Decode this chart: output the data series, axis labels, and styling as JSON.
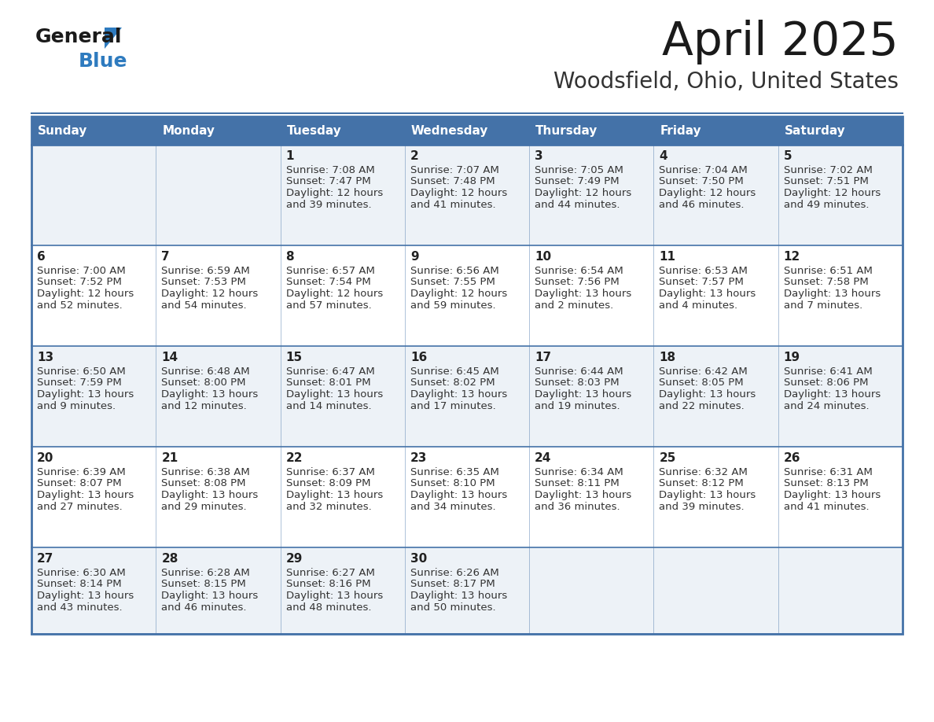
{
  "title": "April 2025",
  "subtitle": "Woodsfield, Ohio, United States",
  "header_bg": "#4472a8",
  "header_text_color": "#ffffff",
  "cell_bg_odd": "#edf2f7",
  "cell_bg_even": "#ffffff",
  "border_color": "#4472a8",
  "day_headers": [
    "Sunday",
    "Monday",
    "Tuesday",
    "Wednesday",
    "Thursday",
    "Friday",
    "Saturday"
  ],
  "title_color": "#1a1a1a",
  "subtitle_color": "#333333",
  "day_num_color": "#222222",
  "cell_text_color": "#333333",
  "calendar": [
    [
      {
        "day": "",
        "sunrise": "",
        "sunset": "",
        "daylight": ""
      },
      {
        "day": "",
        "sunrise": "",
        "sunset": "",
        "daylight": ""
      },
      {
        "day": "1",
        "sunrise": "7:08 AM",
        "sunset": "7:47 PM",
        "daylight": "12 hours and 39 minutes."
      },
      {
        "day": "2",
        "sunrise": "7:07 AM",
        "sunset": "7:48 PM",
        "daylight": "12 hours and 41 minutes."
      },
      {
        "day": "3",
        "sunrise": "7:05 AM",
        "sunset": "7:49 PM",
        "daylight": "12 hours and 44 minutes."
      },
      {
        "day": "4",
        "sunrise": "7:04 AM",
        "sunset": "7:50 PM",
        "daylight": "12 hours and 46 minutes."
      },
      {
        "day": "5",
        "sunrise": "7:02 AM",
        "sunset": "7:51 PM",
        "daylight": "12 hours and 49 minutes."
      }
    ],
    [
      {
        "day": "6",
        "sunrise": "7:00 AM",
        "sunset": "7:52 PM",
        "daylight": "12 hours and 52 minutes."
      },
      {
        "day": "7",
        "sunrise": "6:59 AM",
        "sunset": "7:53 PM",
        "daylight": "12 hours and 54 minutes."
      },
      {
        "day": "8",
        "sunrise": "6:57 AM",
        "sunset": "7:54 PM",
        "daylight": "12 hours and 57 minutes."
      },
      {
        "day": "9",
        "sunrise": "6:56 AM",
        "sunset": "7:55 PM",
        "daylight": "12 hours and 59 minutes."
      },
      {
        "day": "10",
        "sunrise": "6:54 AM",
        "sunset": "7:56 PM",
        "daylight": "13 hours and 2 minutes."
      },
      {
        "day": "11",
        "sunrise": "6:53 AM",
        "sunset": "7:57 PM",
        "daylight": "13 hours and 4 minutes."
      },
      {
        "day": "12",
        "sunrise": "6:51 AM",
        "sunset": "7:58 PM",
        "daylight": "13 hours and 7 minutes."
      }
    ],
    [
      {
        "day": "13",
        "sunrise": "6:50 AM",
        "sunset": "7:59 PM",
        "daylight": "13 hours and 9 minutes."
      },
      {
        "day": "14",
        "sunrise": "6:48 AM",
        "sunset": "8:00 PM",
        "daylight": "13 hours and 12 minutes."
      },
      {
        "day": "15",
        "sunrise": "6:47 AM",
        "sunset": "8:01 PM",
        "daylight": "13 hours and 14 minutes."
      },
      {
        "day": "16",
        "sunrise": "6:45 AM",
        "sunset": "8:02 PM",
        "daylight": "13 hours and 17 minutes."
      },
      {
        "day": "17",
        "sunrise": "6:44 AM",
        "sunset": "8:03 PM",
        "daylight": "13 hours and 19 minutes."
      },
      {
        "day": "18",
        "sunrise": "6:42 AM",
        "sunset": "8:05 PM",
        "daylight": "13 hours and 22 minutes."
      },
      {
        "day": "19",
        "sunrise": "6:41 AM",
        "sunset": "8:06 PM",
        "daylight": "13 hours and 24 minutes."
      }
    ],
    [
      {
        "day": "20",
        "sunrise": "6:39 AM",
        "sunset": "8:07 PM",
        "daylight": "13 hours and 27 minutes."
      },
      {
        "day": "21",
        "sunrise": "6:38 AM",
        "sunset": "8:08 PM",
        "daylight": "13 hours and 29 minutes."
      },
      {
        "day": "22",
        "sunrise": "6:37 AM",
        "sunset": "8:09 PM",
        "daylight": "13 hours and 32 minutes."
      },
      {
        "day": "23",
        "sunrise": "6:35 AM",
        "sunset": "8:10 PM",
        "daylight": "13 hours and 34 minutes."
      },
      {
        "day": "24",
        "sunrise": "6:34 AM",
        "sunset": "8:11 PM",
        "daylight": "13 hours and 36 minutes."
      },
      {
        "day": "25",
        "sunrise": "6:32 AM",
        "sunset": "8:12 PM",
        "daylight": "13 hours and 39 minutes."
      },
      {
        "day": "26",
        "sunrise": "6:31 AM",
        "sunset": "8:13 PM",
        "daylight": "13 hours and 41 minutes."
      }
    ],
    [
      {
        "day": "27",
        "sunrise": "6:30 AM",
        "sunset": "8:14 PM",
        "daylight": "13 hours and 43 minutes."
      },
      {
        "day": "28",
        "sunrise": "6:28 AM",
        "sunset": "8:15 PM",
        "daylight": "13 hours and 46 minutes."
      },
      {
        "day": "29",
        "sunrise": "6:27 AM",
        "sunset": "8:16 PM",
        "daylight": "13 hours and 48 minutes."
      },
      {
        "day": "30",
        "sunrise": "6:26 AM",
        "sunset": "8:17 PM",
        "daylight": "13 hours and 50 minutes."
      },
      {
        "day": "",
        "sunrise": "",
        "sunset": "",
        "daylight": ""
      },
      {
        "day": "",
        "sunrise": "",
        "sunset": "",
        "daylight": ""
      },
      {
        "day": "",
        "sunrise": "",
        "sunset": "",
        "daylight": ""
      }
    ]
  ],
  "logo_general_color": "#1a1a1a",
  "logo_blue_color": "#2e7bbf"
}
